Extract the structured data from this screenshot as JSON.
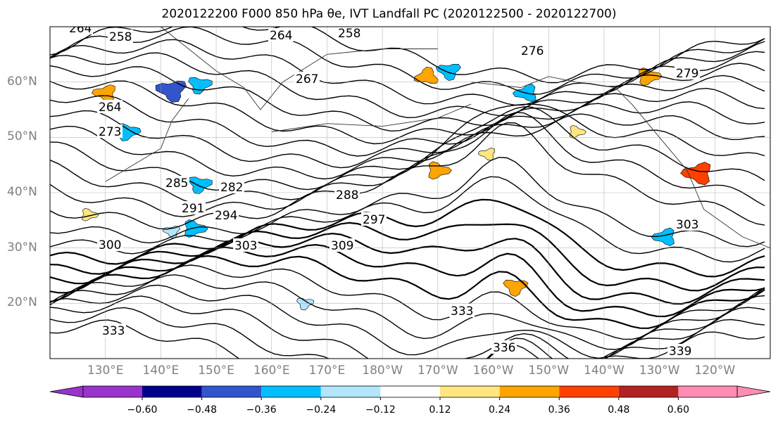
{
  "title": "2020122200 F000 850 hPa θe, IVT Landfall PC (2020122500 - 2020122700)",
  "lat_labels": [
    "60°N",
    "50°N",
    "40°N",
    "30°N",
    "20°N"
  ],
  "lon_labels": [
    "130°E",
    "140°E",
    "150°E",
    "160°E",
    "170°E",
    "180°W",
    "170°W",
    "160°W",
    "150°W",
    "140°W",
    "130°W",
    "120°W"
  ],
  "contour_labels": [
    {
      "text": "264"
    },
    {
      "text": "258"
    },
    {
      "text": "264"
    },
    {
      "text": "258"
    },
    {
      "text": "267"
    },
    {
      "text": "276"
    },
    {
      "text": "279"
    },
    {
      "text": "264"
    },
    {
      "text": "273"
    },
    {
      "text": "285"
    },
    {
      "text": "282"
    },
    {
      "text": "288"
    },
    {
      "text": "291"
    },
    {
      "text": "294"
    },
    {
      "text": "297"
    },
    {
      "text": "300"
    },
    {
      "text": "303"
    },
    {
      "text": "303"
    },
    {
      "text": "309"
    },
    {
      "text": "333"
    },
    {
      "text": "333"
    },
    {
      "text": "336"
    },
    {
      "text": "339"
    }
  ],
  "colorbar": {
    "ticks": [
      "−0.60",
      "−0.48",
      "−0.36",
      "−0.24",
      "−0.12",
      "0.12",
      "0.24",
      "0.36",
      "0.48",
      "0.60"
    ],
    "colors": [
      "#9933cc",
      "#00008b",
      "#3355cc",
      "#00bfff",
      "#b3e5fc",
      "#ffffff",
      "#ffe680",
      "#ffa500",
      "#ff4000",
      "#b22222",
      "#ff8cb3"
    ]
  },
  "patches": [
    {
      "lon": 142,
      "lat": 58.5,
      "sign": -1,
      "level": 3
    },
    {
      "lon": 147,
      "lat": 59.5,
      "sign": -1,
      "level": 2
    },
    {
      "lon": 130,
      "lat": 58,
      "sign": 1,
      "level": 2
    },
    {
      "lon": 188,
      "lat": 61,
      "sign": 1,
      "level": 2
    },
    {
      "lon": 192,
      "lat": 62,
      "sign": -1,
      "level": 2
    },
    {
      "lon": 206,
      "lat": 58,
      "sign": -1,
      "level": 2
    },
    {
      "lon": 147,
      "lat": 41.5,
      "sign": -1,
      "level": 2
    },
    {
      "lon": 146,
      "lat": 33.5,
      "sign": -1,
      "level": 2
    },
    {
      "lon": 134,
      "lat": 51,
      "sign": -1,
      "level": 2
    },
    {
      "lon": 190,
      "lat": 44,
      "sign": 1,
      "level": 2
    },
    {
      "lon": 199,
      "lat": 47,
      "sign": 1,
      "level": 1
    },
    {
      "lon": 215,
      "lat": 51,
      "sign": 1,
      "level": 1
    },
    {
      "lon": 228,
      "lat": 61,
      "sign": 1,
      "level": 2
    },
    {
      "lon": 231,
      "lat": 32,
      "sign": -1,
      "level": 2
    },
    {
      "lon": 204,
      "lat": 23,
      "sign": 1,
      "level": 2
    },
    {
      "lon": 166,
      "lat": 20,
      "sign": -1,
      "level": 1
    },
    {
      "lon": 237,
      "lat": 43.5,
      "sign": 1,
      "level": 3
    },
    {
      "lon": 142,
      "lat": 33,
      "sign": -1,
      "level": 1
    },
    {
      "lon": 127,
      "lat": 36,
      "sign": 1,
      "level": 1
    }
  ]
}
